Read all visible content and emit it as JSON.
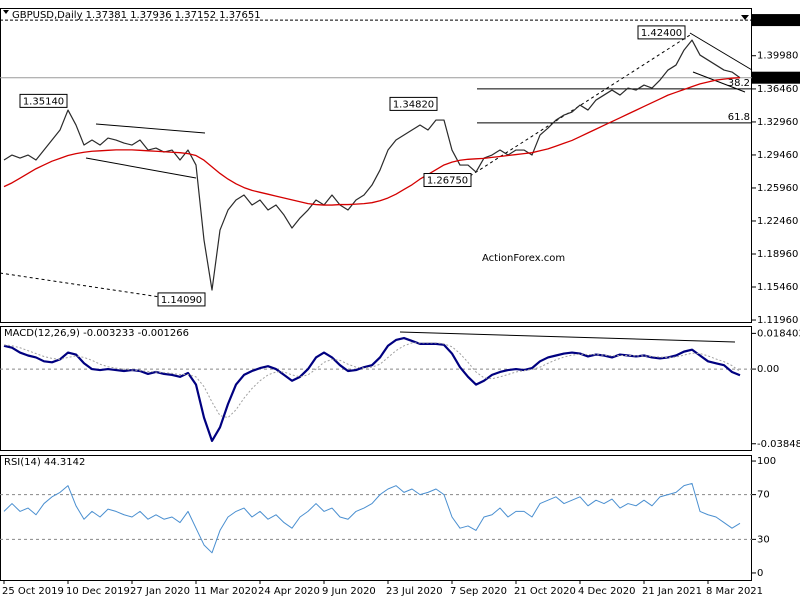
{
  "chart_data": [
    {
      "type": "line",
      "title": "GBPUSD,Daily  1.37381 1.37936 1.37152 1.37651",
      "categories": [
        "25 Oct 2019",
        null,
        null,
        null,
        null,
        null,
        null,
        null,
        "10 Dec 2019",
        null,
        null,
        null,
        null,
        null,
        null,
        null,
        "27 Jan 2020",
        null,
        null,
        null,
        null,
        null,
        null,
        null,
        "11 Mar 2020",
        null,
        null,
        null,
        null,
        null,
        null,
        null,
        "24 Apr 2020",
        null,
        null,
        null,
        null,
        null,
        null,
        null,
        "9 Jun 2020",
        null,
        null,
        null,
        null,
        null,
        null,
        null,
        "23 Jul 2020",
        null,
        null,
        null,
        null,
        null,
        null,
        null,
        "7 Sep 2020",
        null,
        null,
        null,
        null,
        null,
        null,
        null,
        "21 Oct 2020",
        null,
        null,
        null,
        null,
        null,
        null,
        null,
        "4 Dec 2020",
        null,
        null,
        null,
        null,
        null,
        null,
        null,
        "21 Jan 2021",
        null,
        null,
        null,
        null,
        null,
        null,
        null,
        "8 Mar 2021",
        null,
        null,
        null,
        null
      ],
      "series": [
        {
          "color": "#2b2b2b",
          "values": [
            1.2892,
            1.2945,
            1.2913,
            1.2945,
            1.2892,
            1.2998,
            1.3104,
            1.321,
            1.3422,
            1.3263,
            1.3051,
            1.3104,
            1.3051,
            1.3125,
            1.3104,
            1.3072,
            1.3051,
            1.3104,
            1.2998,
            1.3019,
            1.2977,
            1.2998,
            1.2892,
            1.2998,
            1.2839,
            1.2044,
            1.1514,
            1.215,
            1.2362,
            1.2468,
            1.2521,
            1.2415,
            1.2468,
            1.2362,
            1.2415,
            1.2309,
            1.2171,
            1.2277,
            1.2362,
            1.2468,
            1.2415,
            1.2521,
            1.2415,
            1.2362,
            1.2468,
            1.2521,
            1.2627,
            1.2786,
            1.2998,
            1.3104,
            1.3157,
            1.321,
            1.3263,
            1.321,
            1.3316,
            1.3316,
            1.2998,
            1.2839,
            1.2839,
            1.2765,
            1.2913,
            1.2945,
            1.2998,
            1.2945,
            1.2998,
            1.2998,
            1.2945,
            1.3157,
            1.3231,
            1.3316,
            1.3369,
            1.3401,
            1.3475,
            1.3422,
            1.3528,
            1.3581,
            1.3634,
            1.3581,
            1.3655,
            1.3634,
            1.3687,
            1.3655,
            1.374,
            1.3846,
            1.3899,
            1.4058,
            1.4164,
            1.4005,
            1.3952,
            1.3899,
            1.3846,
            1.3825,
            1.3765
          ]
        },
        {
          "color": "#d40000",
          "values": [
            1.261,
            1.265,
            1.27,
            1.275,
            1.28,
            1.284,
            1.288,
            1.291,
            1.294,
            1.296,
            1.2975,
            1.2985,
            1.299,
            1.2995,
            1.3,
            1.3,
            1.3,
            1.2995,
            1.299,
            1.2985,
            1.298,
            1.2975,
            1.297,
            1.296,
            1.294,
            1.289,
            1.282,
            1.275,
            1.269,
            1.264,
            1.26,
            1.257,
            1.255,
            1.253,
            1.251,
            1.249,
            1.247,
            1.245,
            1.243,
            1.242,
            1.2415,
            1.2415,
            1.242,
            1.242,
            1.2425,
            1.243,
            1.244,
            1.246,
            1.249,
            1.253,
            1.258,
            1.263,
            1.269,
            1.274,
            1.279,
            1.284,
            1.287,
            1.289,
            1.29,
            1.2905,
            1.291,
            1.292,
            1.293,
            1.294,
            1.295,
            1.296,
            1.297,
            1.299,
            1.301,
            1.304,
            1.307,
            1.31,
            1.314,
            1.318,
            1.322,
            1.326,
            1.33,
            1.334,
            1.338,
            1.342,
            1.346,
            1.35,
            1.354,
            1.358,
            1.361,
            1.364,
            1.367,
            1.37,
            1.372,
            1.374,
            1.375,
            1.376,
            1.3765
          ]
        }
      ],
      "ylim": [
        1.1175,
        1.4504
      ],
      "yticks": [
        {
          "value": 1.1196,
          "label": "1.11960"
        },
        {
          "value": 1.1546,
          "label": "1.15460"
        },
        {
          "value": 1.1896,
          "label": "1.18960"
        },
        {
          "value": 1.2246,
          "label": "1.22460"
        },
        {
          "value": 1.2596,
          "label": "1.25960"
        },
        {
          "value": 1.2946,
          "label": "1.29460"
        },
        {
          "value": 1.3296,
          "label": "1.32960"
        },
        {
          "value": 1.3646,
          "label": "1.36460"
        },
        {
          "value": 1.3998,
          "label": "1.39980"
        }
      ],
      "markers": [
        {
          "value": 1.4376,
          "label": "1.43760"
        },
        {
          "value": 1.37651,
          "label": "1.37651"
        }
      ],
      "fib_levels": [
        {
          "value": 1.3647,
          "label": "38.2"
        },
        {
          "value": 1.3286,
          "label": "61.8"
        }
      ],
      "annotations": [
        {
          "value": 1.3514,
          "label": "1.35140"
        },
        {
          "value": 1.3482,
          "label": "1.34820"
        },
        {
          "value": 1.2675,
          "label": "1.26750"
        },
        {
          "value": 1.424,
          "label": "1.42400"
        },
        {
          "value": 1.1409,
          "label": "1.14090"
        }
      ],
      "watermark": "ActionForex.com"
    },
    {
      "type": "line",
      "title": "MACD(12,26,9) -0.003233 -0.001266",
      "series": [
        {
          "color": "#000080",
          "values": [
            0.012,
            0.011,
            0.0085,
            0.007,
            0.006,
            0.004,
            0.0035,
            0.005,
            0.0085,
            0.0075,
            0.003,
            0.0,
            -0.0005,
            0.0,
            -0.0005,
            -0.001,
            -0.0005,
            -0.001,
            -0.0025,
            -0.0015,
            -0.0025,
            -0.003,
            -0.004,
            -0.002,
            -0.008,
            -0.025,
            -0.037,
            -0.03,
            -0.018,
            -0.008,
            -0.003,
            -0.001,
            0.0005,
            0.0015,
            0.0,
            -0.003,
            -0.006,
            -0.004,
            0.0,
            0.006,
            0.0085,
            0.006,
            0.002,
            -0.001,
            -0.0005,
            0.001,
            0.002,
            0.006,
            0.012,
            0.015,
            0.016,
            0.0145,
            0.013,
            0.013,
            0.013,
            0.0125,
            0.008,
            0.001,
            -0.004,
            -0.008,
            -0.006,
            -0.003,
            -0.0015,
            -0.0005,
            0.0,
            -0.0005,
            0.0005,
            0.004,
            0.006,
            0.007,
            0.008,
            0.0085,
            0.008,
            0.0065,
            0.0075,
            0.007,
            0.006,
            0.0075,
            0.007,
            0.0065,
            0.007,
            0.006,
            0.0055,
            0.006,
            0.007,
            0.009,
            0.01,
            0.007,
            0.004,
            0.003,
            0.002,
            -0.0015,
            -0.0032
          ]
        },
        {
          "color": "#a0a0a0",
          "dash": true,
          "values": [
            0.0125,
            0.012,
            0.011,
            0.0095,
            0.008,
            0.0065,
            0.0055,
            0.005,
            0.006,
            0.0068,
            0.006,
            0.0045,
            0.0025,
            0.0012,
            0.0005,
            0.0,
            -0.0005,
            -0.0008,
            -0.0012,
            -0.0015,
            -0.0018,
            -0.0022,
            -0.0028,
            -0.0028,
            -0.004,
            -0.009,
            -0.017,
            -0.024,
            -0.025,
            -0.021,
            -0.015,
            -0.01,
            -0.006,
            -0.003,
            -0.0015,
            -0.0015,
            -0.003,
            -0.004,
            -0.003,
            0.0,
            0.0035,
            0.005,
            0.0045,
            0.0025,
            0.001,
            0.0005,
            0.001,
            0.0025,
            0.006,
            0.0095,
            0.012,
            0.0135,
            0.0135,
            0.0135,
            0.0135,
            0.013,
            0.0115,
            0.008,
            0.0035,
            -0.0015,
            -0.0045,
            -0.005,
            -0.004,
            -0.0028,
            -0.0015,
            -0.0008,
            -0.0002,
            0.001,
            0.003,
            0.0048,
            0.0062,
            0.0072,
            0.0077,
            0.0075,
            0.0074,
            0.0072,
            0.0068,
            0.007,
            0.007,
            0.0068,
            0.0068,
            0.0065,
            0.0062,
            0.006,
            0.0062,
            0.0072,
            0.0082,
            0.008,
            0.0068,
            0.0052,
            0.0038,
            0.0018,
            -0.0013
          ]
        }
      ],
      "ylim": [
        -0.0417,
        0.0222
      ],
      "yticks": [
        -0.038483,
        {
          "value": 0,
          "label": "0.00"
        },
        0.018403
      ],
      "levels": [
        0
      ]
    },
    {
      "type": "line",
      "title": "RSI(14) 44.3142",
      "series": [
        {
          "color": "#4a8fd0",
          "values": [
            55,
            62,
            55,
            58,
            52,
            62,
            68,
            72,
            78,
            60,
            48,
            55,
            50,
            57,
            55,
            52,
            50,
            55,
            48,
            52,
            48,
            50,
            45,
            55,
            40,
            25,
            18,
            38,
            50,
            55,
            58,
            50,
            55,
            48,
            52,
            45,
            40,
            50,
            55,
            62,
            55,
            58,
            50,
            48,
            55,
            58,
            62,
            70,
            75,
            78,
            72,
            75,
            70,
            72,
            75,
            70,
            50,
            40,
            42,
            38,
            50,
            52,
            58,
            50,
            55,
            55,
            50,
            62,
            65,
            68,
            62,
            65,
            68,
            60,
            65,
            62,
            66,
            58,
            62,
            60,
            65,
            60,
            68,
            70,
            72,
            78,
            80,
            55,
            52,
            50,
            45,
            40,
            44.3142
          ]
        }
      ],
      "ylim": [
        -6.3,
        105.4
      ],
      "yticks": [
        0,
        30,
        70,
        100
      ],
      "levels": [
        70,
        30
      ]
    }
  ]
}
